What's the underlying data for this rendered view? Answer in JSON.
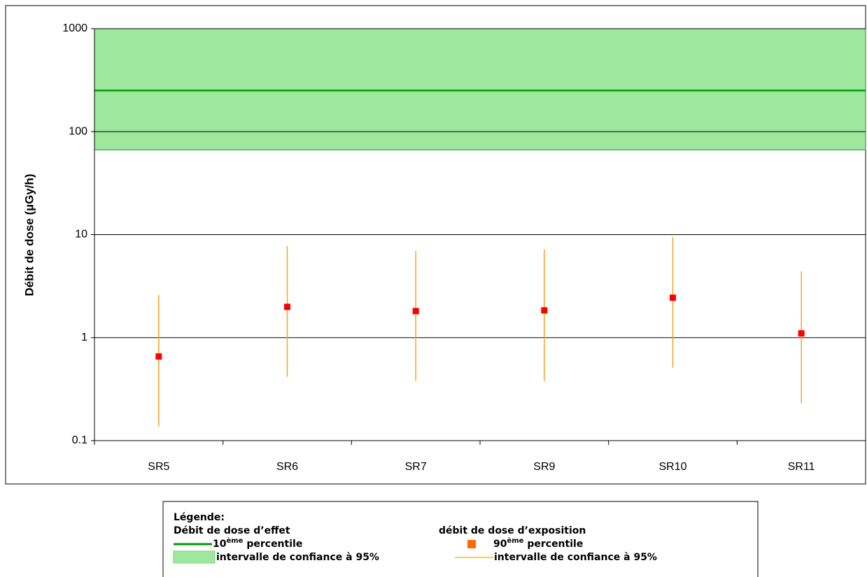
{
  "chart_data": {
    "type": "errorbar",
    "ylabel": "Débit de dose (µGy/h)",
    "categories": [
      "SR5",
      "SR6",
      "SR7",
      "SR9",
      "SR10",
      "SR11"
    ],
    "series": [
      {
        "name": "90ème percentile",
        "color": "#ff0000",
        "error_color": "#f5a623",
        "values": [
          0.656,
          1.99,
          1.81,
          1.84,
          2.44,
          1.1
        ],
        "lower": [
          0.137,
          0.417,
          0.38,
          0.38,
          0.51,
          0.23
        ],
        "upper": [
          2.6,
          7.75,
          6.95,
          7.17,
          9.5,
          4.4
        ]
      }
    ],
    "threshold": {
      "value": 251,
      "ci": [
        66.5,
        1000
      ],
      "color": "#009900",
      "band_color": "#9ee89e"
    },
    "ylim": [
      0.1,
      1000
    ],
    "yticks": [
      0.1,
      1,
      10,
      100,
      1000
    ],
    "log_y": true,
    "grid": true,
    "legend": {
      "title": "Légende:",
      "effect_title": "Débit de dose d’effet",
      "effect_line": [
        "10",
        "ème",
        " percentile"
      ],
      "effect_band": "intervalle de confiance à 95%",
      "exposure_title": "débit de dose d’exposition",
      "exposure_point": [
        "90",
        "ème",
        " percentile"
      ],
      "exposure_error": "intervalle de confiance à 95%"
    }
  }
}
